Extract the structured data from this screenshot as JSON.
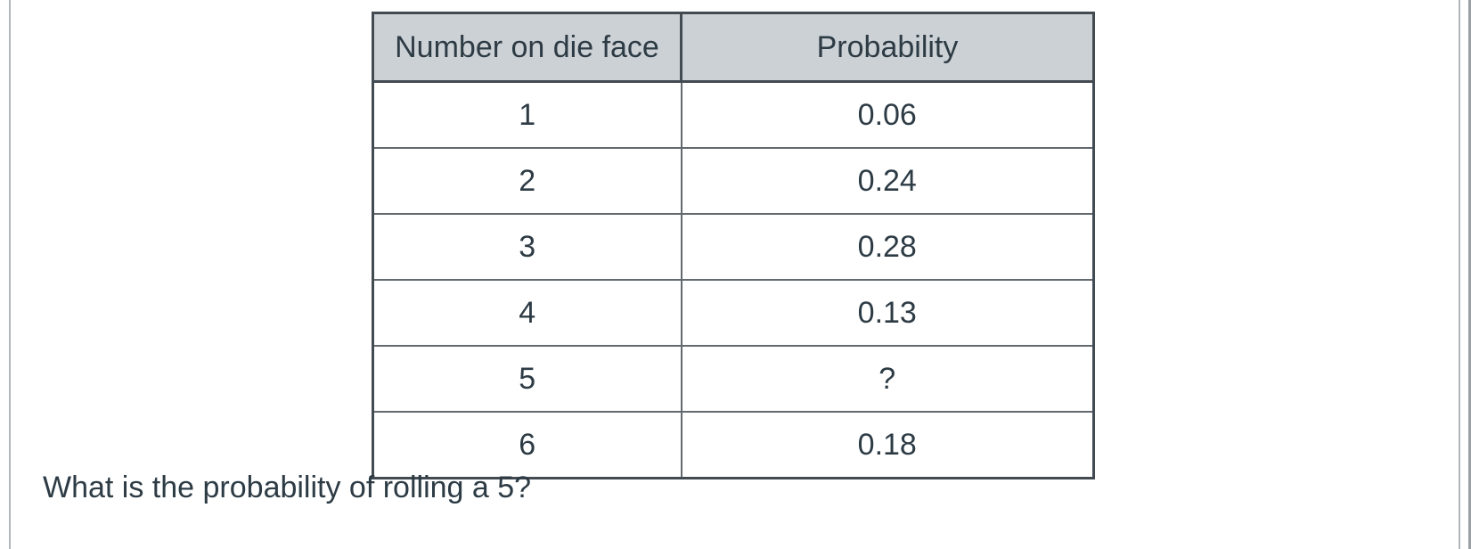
{
  "colors": {
    "text": "#2d3b45",
    "header_background": "#ccd1d5",
    "table_border_outer": "#434b52",
    "table_border_inner": "#62696f",
    "page_edge_line": "#b2b6ba"
  },
  "table": {
    "headers": [
      "Number on die face",
      "Probability"
    ],
    "rows": [
      {
        "face": "1",
        "probability": "0.06"
      },
      {
        "face": "2",
        "probability": "0.24"
      },
      {
        "face": "3",
        "probability": "0.28"
      },
      {
        "face": "4",
        "probability": "0.13"
      },
      {
        "face": "5",
        "probability": "?"
      },
      {
        "face": "6",
        "probability": "0.18"
      }
    ]
  },
  "question": {
    "text": "What is the probability of rolling a 5?"
  }
}
